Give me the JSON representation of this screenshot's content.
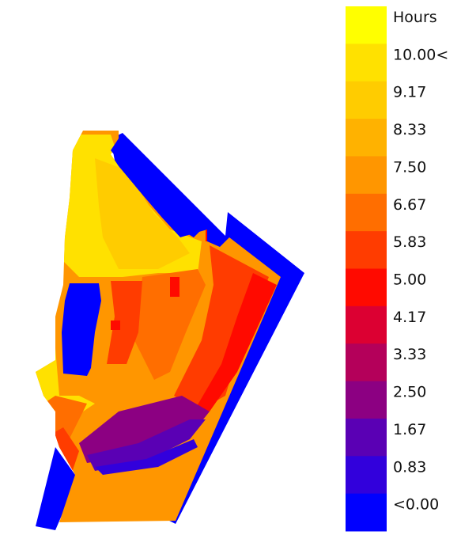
{
  "chart_data": {
    "type": "heatmap",
    "title": "",
    "legend": {
      "title": "Hours",
      "placement": "right",
      "bins": [
        {
          "label": "10.00<",
          "color": "#FFE100"
        },
        {
          "label": "9.17",
          "color": "#FFCC00"
        },
        {
          "label": "8.33",
          "color": "#FFB200"
        },
        {
          "label": "7.50",
          "color": "#FF9600"
        },
        {
          "label": "6.67",
          "color": "#FF6E00"
        },
        {
          "label": "5.83",
          "color": "#FF3C00"
        },
        {
          "label": "5.00",
          "color": "#FF0A00"
        },
        {
          "label": "4.17",
          "color": "#DC0032"
        },
        {
          "label": "3.33",
          "color": "#B4005A"
        },
        {
          "label": "2.50",
          "color": "#8C0082"
        },
        {
          "label": "1.67",
          "color": "#5A00B4"
        },
        {
          "label": "0.83",
          "color": "#3200DC"
        },
        {
          "label": "<0.00",
          "color": "#0000FF"
        }
      ],
      "top_color": "#FFFF00"
    }
  }
}
